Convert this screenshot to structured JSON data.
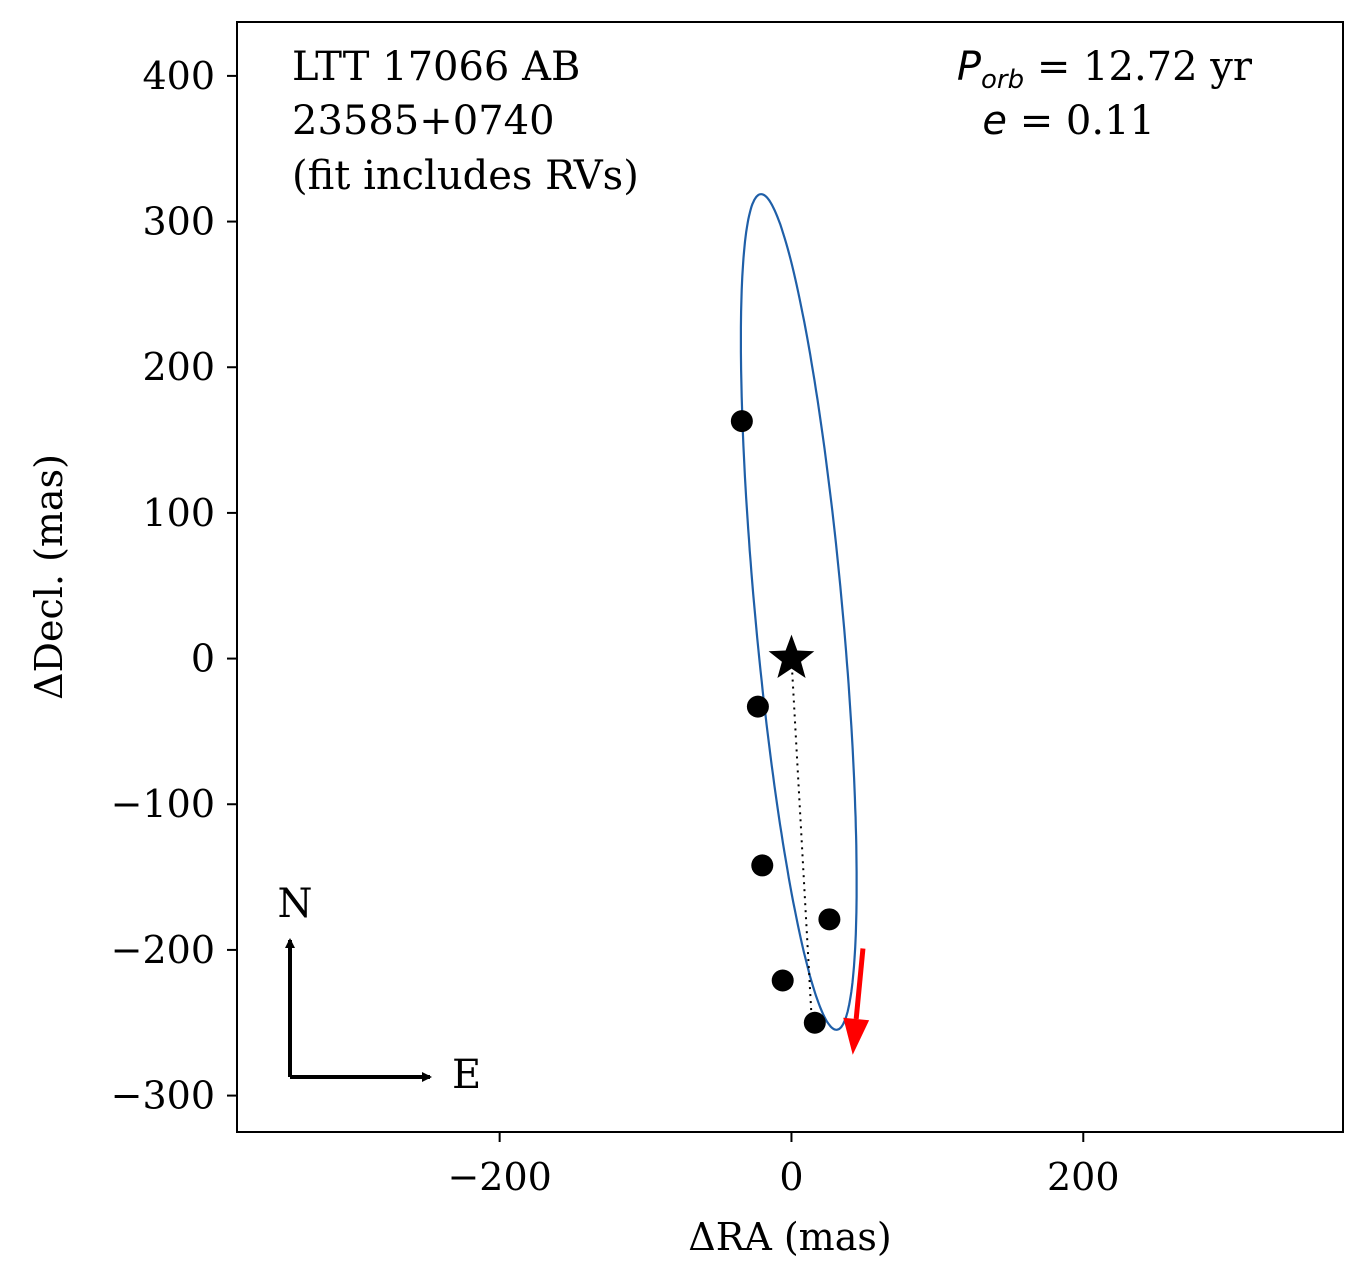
{
  "chart_data": {
    "type": "scatter",
    "title": "",
    "xlabel": "ΔRA  (mas)",
    "ylabel": "ΔDecl.  (mas)",
    "xlim": [
      -380,
      378
    ],
    "ylim": [
      -325,
      437
    ],
    "x_ticks": [
      -200,
      0,
      200
    ],
    "y_ticks": [
      -300,
      -200,
      -100,
      0,
      100,
      200,
      300,
      400
    ],
    "x_tick_labels": [
      "−200",
      "0",
      "200"
    ],
    "y_tick_labels": [
      "−300",
      "−200",
      "−100",
      "0",
      "100",
      "200",
      "300",
      "400"
    ],
    "grid": false,
    "annotations": {
      "name": "LTT 17066 AB",
      "wds": "23585+0740",
      "note": "(fit includes RVs)",
      "period_symbol": "P",
      "period_sub": "orb",
      "period_value": " = 12.72 yr",
      "ecc_symbol": "e",
      "ecc_value": " = 0.11"
    },
    "compass": {
      "north": "N",
      "east": "E"
    },
    "primary_star": {
      "x": 0,
      "y": 0,
      "marker": "★"
    },
    "orbit": {
      "color": "#1f5fa8",
      "center": [
        5,
        32
      ],
      "semi_major": 288,
      "semi_minor": 30,
      "tilt_deg_from_north": -5.2
    },
    "observations": {
      "color": "#000000",
      "points": [
        {
          "x": -34,
          "y": 163
        },
        {
          "x": -23,
          "y": -33
        },
        {
          "x": -20,
          "y": -142
        },
        {
          "x": 26,
          "y": -179
        },
        {
          "x": -6,
          "y": -221
        },
        {
          "x": 16,
          "y": -250
        }
      ]
    },
    "periastron_line": {
      "from": [
        0,
        0
      ],
      "to": [
        14,
        -250
      ]
    },
    "motion_arrow": {
      "color": "#ff0000",
      "from": [
        49,
        -199
      ],
      "to": [
        42,
        -272
      ]
    }
  }
}
